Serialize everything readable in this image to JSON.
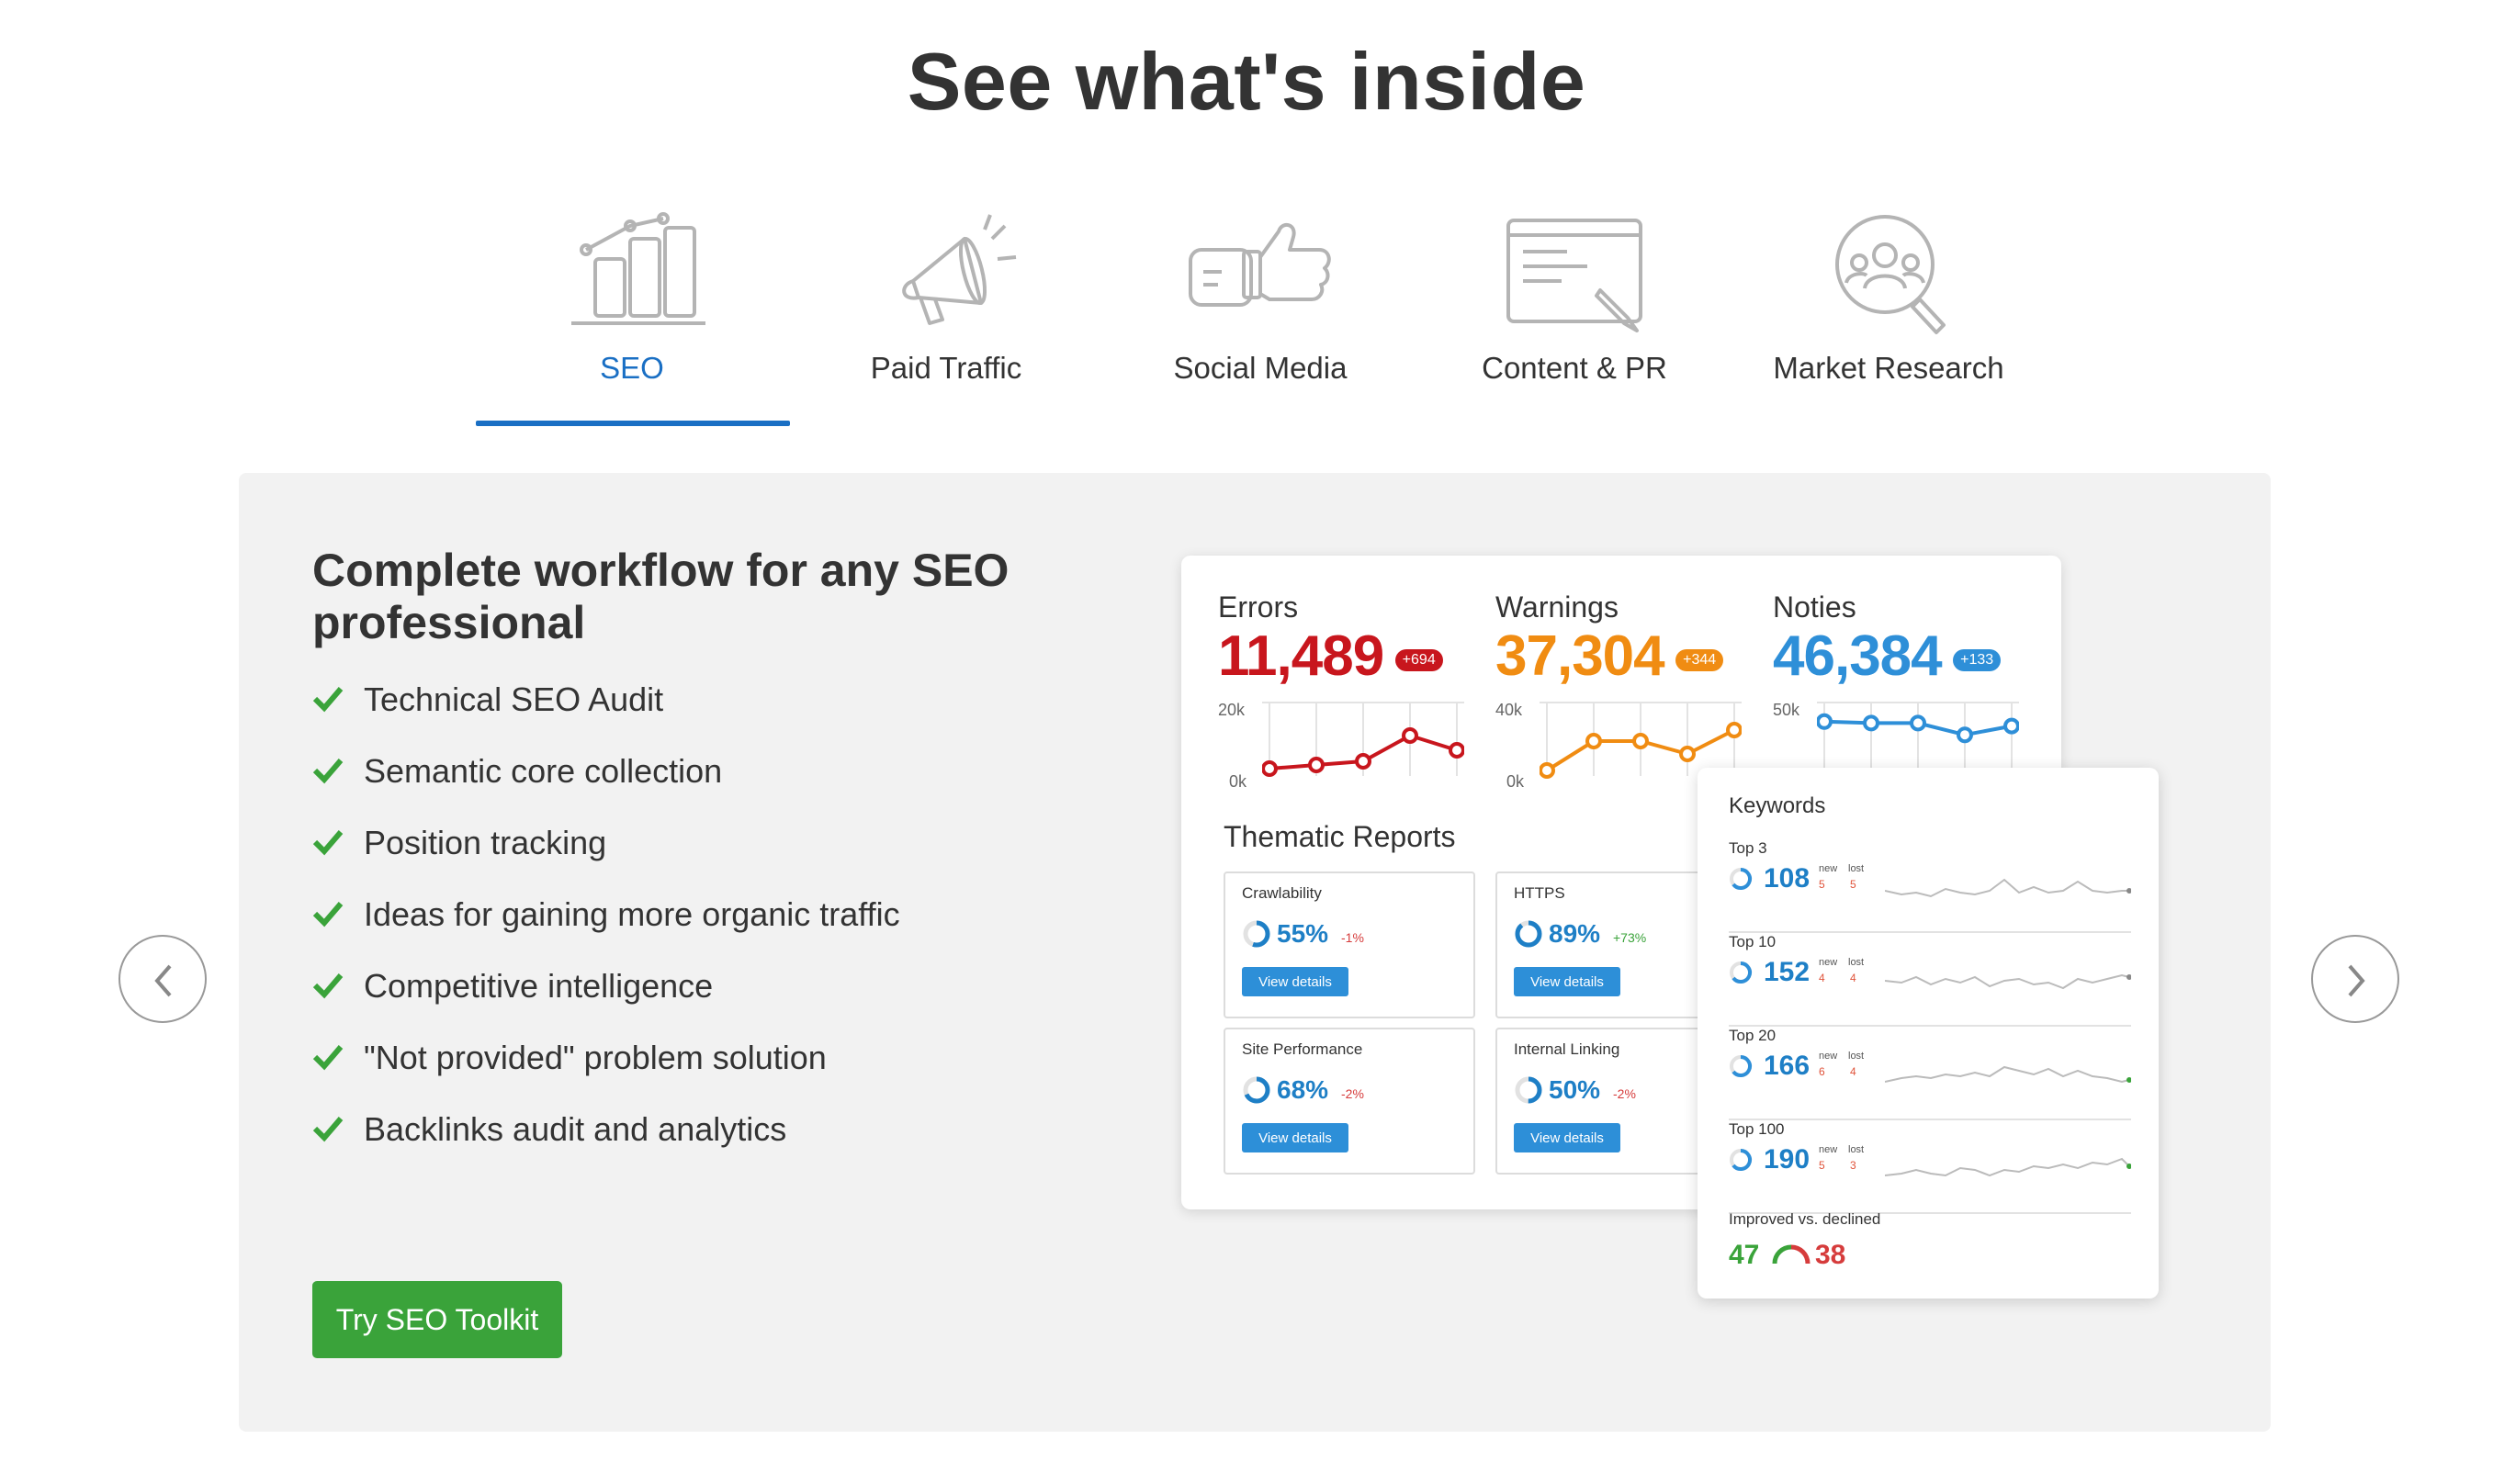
{
  "page": {
    "title": "See what's inside"
  },
  "tabs": [
    {
      "label": "SEO",
      "icon": "bar-chart-icon",
      "active": true
    },
    {
      "label": "Paid Traffic",
      "icon": "megaphone-icon",
      "active": false
    },
    {
      "label": "Social Media",
      "icon": "thumbs-up-icon",
      "active": false
    },
    {
      "label": "Content & PR",
      "icon": "document-pen-icon",
      "active": false
    },
    {
      "label": "Market Research",
      "icon": "magnifier-people-icon",
      "active": false
    }
  ],
  "panel": {
    "title": "Complete workflow for any SEO professional",
    "features": [
      "Technical SEO Audit",
      "Semantic core collection",
      "Position tracking",
      "Ideas for gaining more organic traffic",
      "Competitive intelligence",
      "\"Not provided\" problem solution",
      "Backlinks audit and analytics"
    ],
    "cta_label": "Try SEO Toolkit"
  },
  "colors": {
    "accent": "#1a6fc4",
    "cta": "#3aa33a",
    "errors": "#c8161d",
    "warnings": "#f08c12",
    "notices": "#2e8fd8"
  },
  "dashboard": {
    "metrics": [
      {
        "label": "Errors",
        "value": "11,489",
        "badge": "+694",
        "ymax_label": "20k",
        "ymin_label": "0k",
        "ymax": 20,
        "points": [
          2,
          3,
          4,
          11,
          7
        ]
      },
      {
        "label": "Warnings",
        "value": "37,304",
        "badge": "+344",
        "ymax_label": "40k",
        "ymin_label": "0k",
        "ymax": 40,
        "points": [
          3,
          19,
          19,
          12,
          25
        ]
      },
      {
        "label": "Noties",
        "value": "46,384",
        "badge": "+133",
        "ymax_label": "50k",
        "ymin_label": "",
        "ymax": 50,
        "points": [
          37,
          36,
          36,
          28,
          34
        ]
      }
    ],
    "thematic_title": "Thematic Reports",
    "reports": [
      {
        "name": "Crawlability",
        "percent": "55%",
        "delta": "-1%",
        "fraction": 0.55,
        "button": "View details"
      },
      {
        "name": "HTTPS",
        "percent": "89%",
        "delta": "+73%",
        "fraction": 0.89,
        "button": "View details"
      },
      {
        "name": "Site Performance",
        "percent": "68%",
        "delta": "-2%",
        "fraction": 0.68,
        "button": "View details"
      },
      {
        "name": "Internal Linking",
        "percent": "50%",
        "delta": "-2%",
        "fraction": 0.5,
        "button": "View details"
      }
    ]
  },
  "keywords": {
    "title": "Keywords",
    "rows": [
      {
        "label": "Top 3",
        "value": "108",
        "new_label": "new",
        "lost_label": "lost",
        "new": "5",
        "lost": "5"
      },
      {
        "label": "Top 10",
        "value": "152",
        "new_label": "new",
        "lost_label": "lost",
        "new": "4",
        "lost": "4"
      },
      {
        "label": "Top 20",
        "value": "166",
        "new_label": "new",
        "lost_label": "lost",
        "new": "6",
        "lost": "4"
      },
      {
        "label": "Top 100",
        "value": "190",
        "new_label": "new",
        "lost_label": "lost",
        "new": "5",
        "lost": "3"
      }
    ],
    "improved_label": "Improved vs. declined",
    "improved": "47",
    "declined": "38"
  }
}
